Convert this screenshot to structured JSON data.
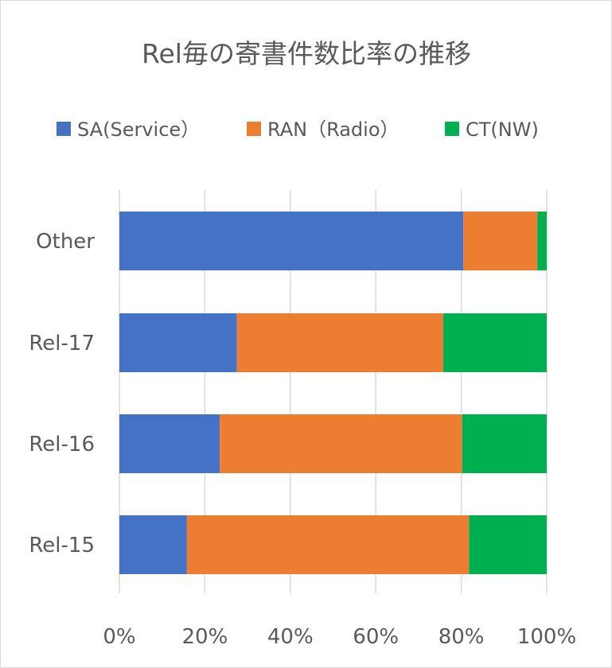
{
  "chart_data": {
    "type": "bar",
    "orientation": "horizontal",
    "stacked": "percent",
    "title": "Rel毎の寄書件数比率の推移",
    "categories": [
      "Other",
      "Rel-17",
      "Rel-16",
      "Rel-15"
    ],
    "series": [
      {
        "name": "SA(Service）",
        "color": "#4472C4",
        "values": [
          80.5,
          27.5,
          23.5,
          15.8
        ]
      },
      {
        "name": "RAN（Radio）",
        "color": "#ED7D31",
        "values": [
          17.3,
          48.3,
          56.7,
          66.0
        ]
      },
      {
        "name": "CT(NW)",
        "color": "#00B050",
        "values": [
          2.2,
          24.2,
          19.8,
          18.2
        ]
      }
    ],
    "xlim": [
      0,
      100
    ],
    "xticks": [
      "0%",
      "20%",
      "40%",
      "60%",
      "80%",
      "100%"
    ],
    "grid": true,
    "legend_position": "top"
  }
}
